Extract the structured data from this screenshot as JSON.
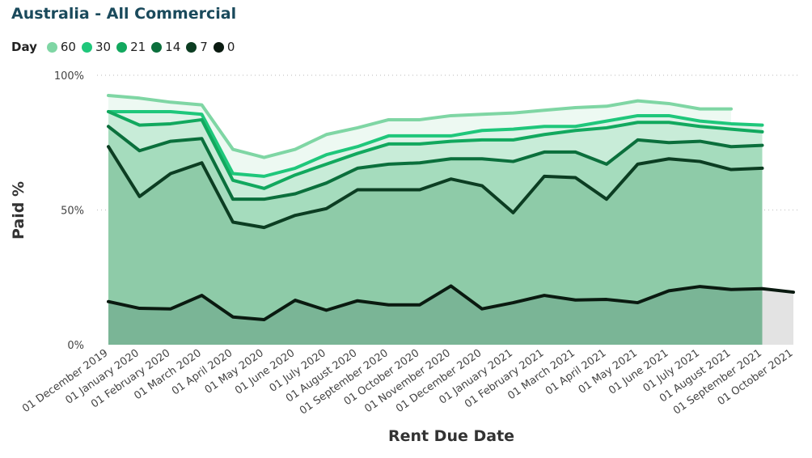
{
  "chart_data": {
    "type": "area",
    "title": "Australia - All Commercial",
    "xlabel": "Rent Due Date",
    "ylabel": "Paid %",
    "legend_title": "Day",
    "legend_placement": "top-left",
    "ylim": [
      0,
      100
    ],
    "yticks": [
      "0%",
      "50%",
      "100%"
    ],
    "grid": true,
    "categories": [
      "01 December 2019",
      "01 January 2020",
      "01 February 2020",
      "01 March 2020",
      "01 April 2020",
      "01 May 2020",
      "01 June 2020",
      "01 July 2020",
      "01 August 2020",
      "01 September 2020",
      "01 October 2020",
      "01 November 2020",
      "01 December 2020",
      "01 January 2021",
      "01 February 2021",
      "01 March 2021",
      "01 April 2021",
      "01 May 2021",
      "01 June 2021",
      "01 July 2021",
      "01 August 2021",
      "01 September 2021",
      "01 October 2021"
    ],
    "series": [
      {
        "name": "60",
        "color": "#7fd6a4",
        "values": [
          92.5,
          91.5,
          90,
          89,
          72.5,
          69.5,
          72.5,
          78,
          80.5,
          83.5,
          83.5,
          85,
          85.5,
          86,
          87,
          88,
          88.5,
          90.5,
          89.5,
          87.5,
          87.5,
          null,
          null
        ]
      },
      {
        "name": "30",
        "color": "#1fc77b",
        "values": [
          86.5,
          86.5,
          86.5,
          85.5,
          63.5,
          62.5,
          65.5,
          70.5,
          73.5,
          77.5,
          77.5,
          77.5,
          79.5,
          80,
          81,
          81,
          83,
          85,
          85,
          83,
          82,
          81.5,
          null
        ]
      },
      {
        "name": "21",
        "color": "#12a85e",
        "values": [
          86.5,
          81.5,
          82,
          83.5,
          61,
          58,
          63,
          67,
          71,
          74.5,
          74.5,
          75.5,
          76,
          76,
          78,
          79.5,
          80.5,
          82.5,
          82.5,
          81,
          80,
          79,
          null
        ]
      },
      {
        "name": "14",
        "color": "#0b6f3c",
        "values": [
          81,
          72,
          75.5,
          76.5,
          54,
          54,
          56,
          60,
          65.5,
          67,
          67.5,
          69,
          69,
          68,
          71.5,
          71.5,
          67,
          76,
          75,
          75.5,
          73.5,
          74,
          null
        ]
      },
      {
        "name": "7",
        "color": "#0c3d22",
        "values": [
          73.5,
          55,
          63.5,
          67.5,
          45.5,
          43.5,
          48,
          50.5,
          57.5,
          57.5,
          57.5,
          61.5,
          59,
          49,
          62.5,
          62,
          54,
          67,
          69,
          68,
          65,
          65.5,
          null
        ]
      },
      {
        "name": "0",
        "color": "#0a1a10",
        "values": [
          16,
          13.5,
          13.3,
          18.3,
          10.3,
          9.3,
          16.5,
          12.8,
          16.3,
          14.8,
          14.8,
          21.8,
          13.3,
          15.6,
          18.3,
          16.6,
          16.8,
          15.6,
          20,
          21.6,
          20.5,
          20.8,
          19.5
        ]
      }
    ]
  }
}
